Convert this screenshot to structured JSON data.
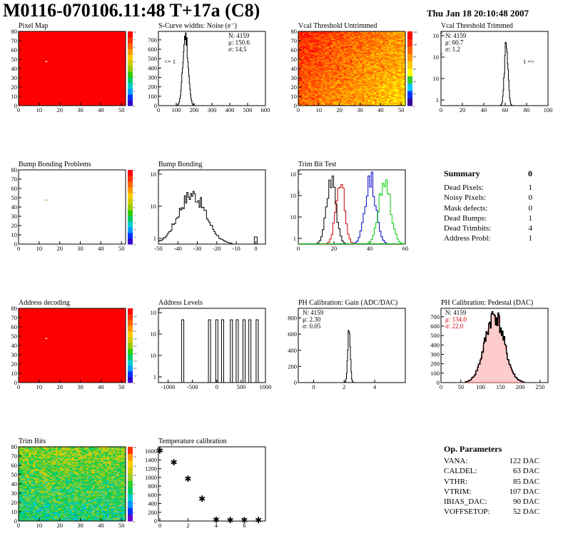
{
  "header": {
    "title": "M0116-070106.11:48 T+17a (C8)",
    "date": "Thu Jan 18 20:10:48 2007"
  },
  "colors": {
    "hist_line": "#000000",
    "hist_red": "#cc0000",
    "hist_green": "#00cc00",
    "hist_blue": "#0000cc",
    "map_full": "#ff0000"
  },
  "chart_data": [
    {
      "id": "pixel-map",
      "type": "heatmap",
      "title": "Pixel Map",
      "xlim": [
        0,
        52
      ],
      "ylim": [
        0,
        80
      ],
      "xticks": [
        "0",
        "10",
        "20",
        "30",
        "40",
        "50"
      ],
      "yticks": [
        "0",
        "10",
        "20",
        "30",
        "40",
        "50",
        "60",
        "70",
        "80"
      ],
      "zlim": [
        0,
        10
      ],
      "palette_ticks": [
        "0",
        "1",
        "2",
        "3",
        "4",
        "5",
        "6",
        "7",
        "8",
        "9",
        "10"
      ],
      "fill_value": 10,
      "cold_pixels": [
        {
          "col": 13,
          "row": 47
        }
      ]
    },
    {
      "id": "s-curve-widths",
      "type": "bar",
      "title": "S-Curve widths: Noise (e⁻)",
      "xlim": [
        0,
        600
      ],
      "xticks": [
        "0",
        "100",
        "200",
        "300",
        "400",
        "500",
        "600"
      ],
      "stats": [
        "N: 4159",
        "μ: 150.6",
        "σ: 14.5"
      ],
      "note": "<= 1",
      "peak_value": 760
    },
    {
      "id": "vcal-threshold-untrimmed",
      "type": "heatmap",
      "title": "Vcal Threshold Untrimmed",
      "xlim": [
        0,
        52
      ],
      "ylim": [
        0,
        80
      ],
      "xticks": [
        "0",
        "10",
        "20",
        "30",
        "40",
        "50"
      ],
      "yticks": [
        "0",
        "10",
        "20",
        "30",
        "40",
        "50",
        "60",
        "70",
        "80"
      ],
      "palette_ticks": [
        "0",
        "20",
        "40",
        "60",
        "80",
        "100",
        "120"
      ]
    },
    {
      "id": "vcal-threshold-trimmed",
      "type": "bar",
      "title": "Vcal Threshold Trimmed",
      "xlim": [
        0,
        100
      ],
      "xticks": [
        "0",
        "20",
        "40",
        "60",
        "80",
        "100"
      ],
      "yscale": "log",
      "stats": [
        "N: 4159",
        "μ: 60.7",
        "σ:  1.2"
      ],
      "note": "1 =>"
    },
    {
      "id": "bump-bonding-problems",
      "type": "heatmap",
      "title": "Bump Bonding Problems",
      "xlim": [
        0,
        52
      ],
      "ylim": [
        0,
        80
      ],
      "xticks": [
        "0",
        "10",
        "20",
        "30",
        "40",
        "50"
      ],
      "yticks": [
        "0",
        "10",
        "20",
        "30",
        "40",
        "50",
        "60",
        "70",
        "80"
      ],
      "palette_ticks": [
        "-5",
        "-4",
        "-3",
        "-2",
        "-1",
        "0",
        "1",
        "2",
        "3",
        "4",
        "5"
      ],
      "marks": [
        {
          "col": 13,
          "row": 47
        }
      ]
    },
    {
      "id": "bump-bonding",
      "type": "bar",
      "title": "Bump Bonding",
      "xlim": [
        -50,
        5
      ],
      "xticks": [
        "-50",
        "-40",
        "-30",
        "-20",
        "-10",
        "0"
      ],
      "yscale": "log",
      "peak_value": 320
    },
    {
      "id": "trim-bit-test",
      "type": "line",
      "title": "Trim Bit Test",
      "xlim": [
        0,
        60
      ],
      "xticks": [
        "0",
        "20",
        "40",
        "60"
      ],
      "yscale": "log",
      "series": [
        {
          "color": "black",
          "center": 18,
          "width": 2.6
        },
        {
          "color": "red",
          "center": 23,
          "width": 2.4
        },
        {
          "color": "blue",
          "center": 40,
          "width": 3
        },
        {
          "color": "green",
          "center": 48,
          "width": 3.2
        }
      ]
    },
    {
      "id": "address-decoding",
      "type": "heatmap",
      "title": "Address decoding",
      "xlim": [
        0,
        52
      ],
      "ylim": [
        0,
        80
      ],
      "xticks": [
        "0",
        "10",
        "20",
        "30",
        "40",
        "50"
      ],
      "yticks": [
        "0",
        "10",
        "20",
        "30",
        "40",
        "50",
        "60",
        "70",
        "80"
      ],
      "palette_ticks": [
        "0",
        "0.1",
        "0.2",
        "0.3",
        "0.4",
        "0.5",
        "0.6",
        "0.7",
        "0.8",
        "0.9",
        "1"
      ],
      "fill_value": 1,
      "cold_pixels": [
        {
          "col": 13,
          "row": 47
        }
      ]
    },
    {
      "id": "address-levels",
      "type": "bar",
      "title": "Address Levels",
      "xlim": [
        -1200,
        1000
      ],
      "xticks": [
        "-1000",
        "-500",
        "0",
        "500",
        "1000"
      ],
      "yscale": "log",
      "peaks": [
        -700,
        -150,
        0,
        120,
        300,
        420,
        560,
        680,
        830
      ]
    },
    {
      "id": "ph-calibration-gain",
      "type": "bar",
      "title": "PH Calibration: Gain (ADC/DAC)",
      "xlim": [
        -1,
        6
      ],
      "xticks": [
        "0",
        "2",
        "4"
      ],
      "stats": [
        "N: 4159",
        "μ: 2.30",
        "σ: 0.05"
      ],
      "peak_value": 700
    },
    {
      "id": "ph-calibration-pedestal",
      "type": "bar",
      "title": "PH Calibration: Pedestal (DAC)",
      "xlim": [
        0,
        270
      ],
      "xticks": [
        "0",
        "50",
        "100",
        "150",
        "200",
        "250"
      ],
      "stats": [
        "N: 4159",
        "μ: 134.0",
        "σ: 22.0"
      ],
      "peak_value": 720
    },
    {
      "id": "trim-bits",
      "type": "heatmap",
      "title": "Trim Bits",
      "xlim": [
        0,
        52
      ],
      "ylim": [
        0,
        80
      ],
      "xticks": [
        "0",
        "10",
        "20",
        "30",
        "40",
        "50"
      ],
      "yticks": [
        "0",
        "10",
        "20",
        "30",
        "40",
        "50",
        "60",
        "70",
        "80"
      ],
      "palette_ticks": [
        "0",
        "2",
        "4",
        "6",
        "8",
        "10",
        "12",
        "14",
        "16"
      ]
    },
    {
      "id": "temperature-calibration",
      "type": "scatter",
      "title": "Temperature calibration",
      "xlim": [
        -0.1,
        7.5
      ],
      "ylim": [
        0,
        1700
      ],
      "xticks": [
        "0",
        "2",
        "4",
        "6"
      ],
      "yticks": [
        "0",
        "200",
        "400",
        "600",
        "800",
        "1000",
        "1200",
        "1400",
        "1600"
      ],
      "x": [
        0,
        1,
        2,
        3,
        4,
        5,
        6,
        7
      ],
      "y": [
        1630,
        1360,
        980,
        520,
        40,
        30,
        30,
        35
      ]
    }
  ],
  "summary": {
    "title": "Summary",
    "value": "0",
    "rows": [
      {
        "label": "Dead Pixels:",
        "value": "1"
      },
      {
        "label": "Noisy Pixels:",
        "value": "0"
      },
      {
        "label": "Mask defects:",
        "value": "0"
      },
      {
        "label": "Dead Bumps:",
        "value": "1"
      },
      {
        "label": "Dead Trimbits:",
        "value": "4"
      },
      {
        "label": "Address Probl:",
        "value": "1"
      }
    ]
  },
  "op_parameters": {
    "title": "Op. Parameters",
    "rows": [
      {
        "label": "VANA:",
        "value": "122 DAC"
      },
      {
        "label": "CALDEL:",
        "value": "63 DAC"
      },
      {
        "label": "VTHR:",
        "value": "85 DAC"
      },
      {
        "label": "VTRIM:",
        "value": "107 DAC"
      },
      {
        "label": "IBIAS_DAC:",
        "value": "90 DAC"
      },
      {
        "label": "VOFFSETOP:",
        "value": "52 DAC"
      }
    ]
  }
}
